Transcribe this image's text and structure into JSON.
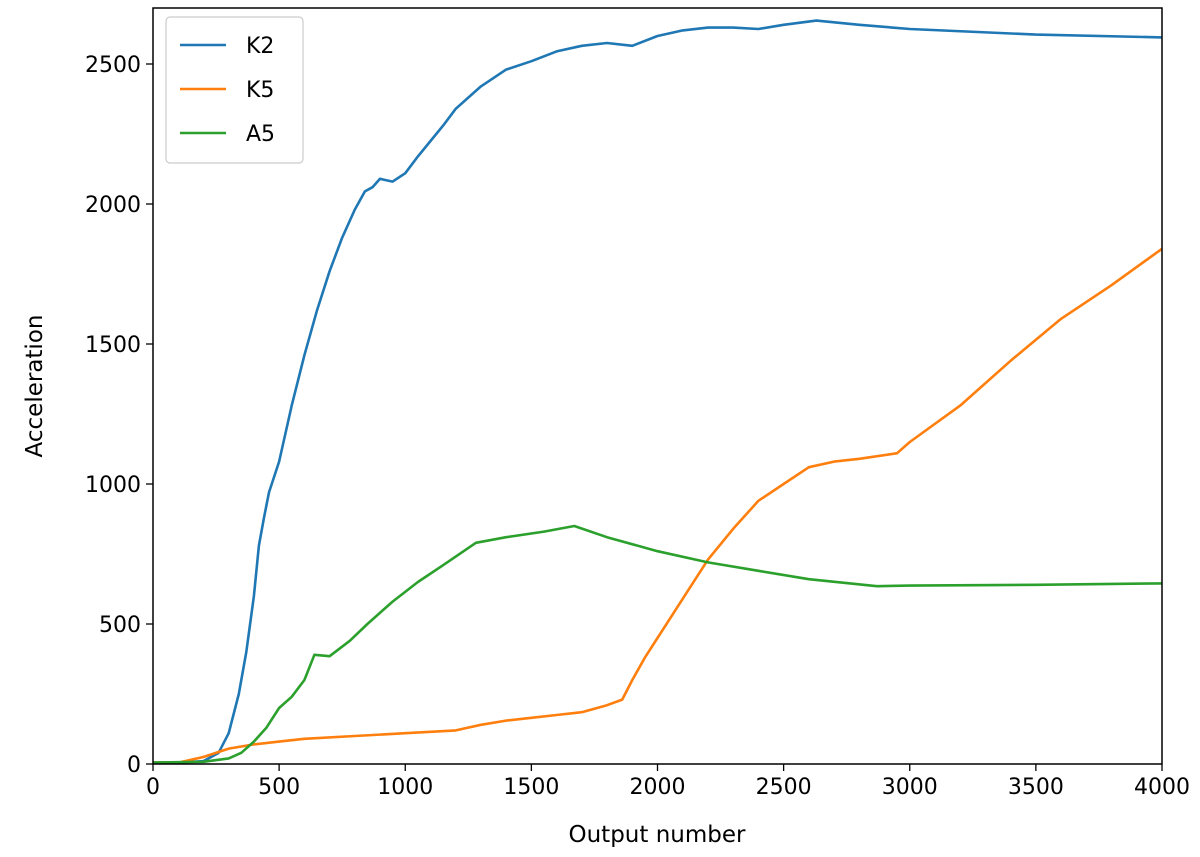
{
  "chart_data": {
    "type": "line",
    "title": "",
    "xlabel": "Output number",
    "ylabel": "Acceleration",
    "xlim": [
      0,
      4000
    ],
    "ylim": [
      0,
      2700
    ],
    "x_ticks": [
      0,
      500,
      1000,
      1500,
      2000,
      2500,
      3000,
      3500,
      4000
    ],
    "y_ticks": [
      0,
      500,
      1000,
      1500,
      2000,
      2500
    ],
    "grid": false,
    "legend_position": "top-left",
    "series": [
      {
        "name": "K2",
        "color": "#1f77b4",
        "points": [
          [
            0,
            5
          ],
          [
            100,
            5
          ],
          [
            200,
            10
          ],
          [
            260,
            40
          ],
          [
            300,
            110
          ],
          [
            340,
            250
          ],
          [
            370,
            400
          ],
          [
            400,
            600
          ],
          [
            420,
            780
          ],
          [
            440,
            880
          ],
          [
            460,
            970
          ],
          [
            500,
            1080
          ],
          [
            550,
            1280
          ],
          [
            600,
            1460
          ],
          [
            650,
            1620
          ],
          [
            700,
            1760
          ],
          [
            750,
            1880
          ],
          [
            800,
            1980
          ],
          [
            840,
            2045
          ],
          [
            870,
            2060
          ],
          [
            900,
            2090
          ],
          [
            950,
            2080
          ],
          [
            1000,
            2110
          ],
          [
            1050,
            2170
          ],
          [
            1100,
            2225
          ],
          [
            1150,
            2280
          ],
          [
            1200,
            2340
          ],
          [
            1300,
            2420
          ],
          [
            1400,
            2480
          ],
          [
            1500,
            2510
          ],
          [
            1600,
            2545
          ],
          [
            1700,
            2565
          ],
          [
            1800,
            2575
          ],
          [
            1900,
            2565
          ],
          [
            2000,
            2600
          ],
          [
            2100,
            2620
          ],
          [
            2200,
            2630
          ],
          [
            2300,
            2630
          ],
          [
            2400,
            2625
          ],
          [
            2500,
            2640
          ],
          [
            2630,
            2655
          ],
          [
            2800,
            2640
          ],
          [
            3000,
            2625
          ],
          [
            3500,
            2605
          ],
          [
            4000,
            2595
          ]
        ]
      },
      {
        "name": "K5",
        "color": "#ff7f0e",
        "points": [
          [
            0,
            5
          ],
          [
            100,
            5
          ],
          [
            200,
            25
          ],
          [
            300,
            55
          ],
          [
            400,
            70
          ],
          [
            500,
            80
          ],
          [
            600,
            90
          ],
          [
            800,
            100
          ],
          [
            1000,
            110
          ],
          [
            1200,
            120
          ],
          [
            1300,
            140
          ],
          [
            1400,
            155
          ],
          [
            1500,
            165
          ],
          [
            1600,
            175
          ],
          [
            1700,
            185
          ],
          [
            1800,
            210
          ],
          [
            1860,
            230
          ],
          [
            1900,
            300
          ],
          [
            1950,
            380
          ],
          [
            2000,
            450
          ],
          [
            2100,
            590
          ],
          [
            2200,
            730
          ],
          [
            2300,
            840
          ],
          [
            2400,
            940
          ],
          [
            2500,
            1000
          ],
          [
            2600,
            1060
          ],
          [
            2700,
            1080
          ],
          [
            2800,
            1090
          ],
          [
            2950,
            1110
          ],
          [
            3000,
            1150
          ],
          [
            3200,
            1280
          ],
          [
            3400,
            1440
          ],
          [
            3600,
            1590
          ],
          [
            3800,
            1710
          ],
          [
            4000,
            1840
          ]
        ]
      },
      {
        "name": "A5",
        "color": "#2ca02c",
        "points": [
          [
            0,
            5
          ],
          [
            200,
            8
          ],
          [
            300,
            20
          ],
          [
            350,
            40
          ],
          [
            400,
            80
          ],
          [
            450,
            130
          ],
          [
            500,
            200
          ],
          [
            550,
            240
          ],
          [
            600,
            300
          ],
          [
            640,
            390
          ],
          [
            700,
            385
          ],
          [
            780,
            440
          ],
          [
            850,
            500
          ],
          [
            950,
            580
          ],
          [
            1050,
            650
          ],
          [
            1150,
            710
          ],
          [
            1280,
            790
          ],
          [
            1400,
            810
          ],
          [
            1550,
            830
          ],
          [
            1670,
            850
          ],
          [
            1800,
            810
          ],
          [
            2000,
            760
          ],
          [
            2200,
            720
          ],
          [
            2400,
            690
          ],
          [
            2600,
            660
          ],
          [
            2870,
            635
          ],
          [
            3000,
            637
          ],
          [
            3500,
            640
          ],
          [
            4000,
            645
          ]
        ]
      }
    ]
  }
}
